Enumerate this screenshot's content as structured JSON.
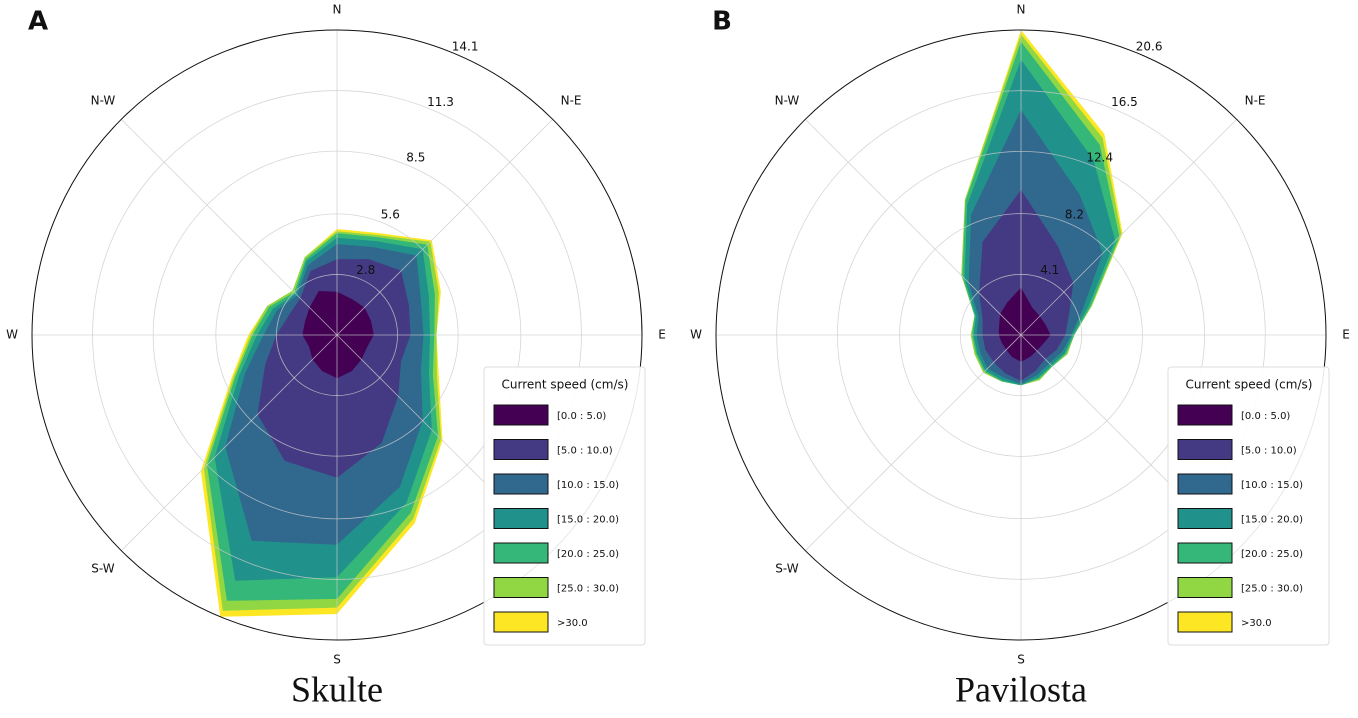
{
  "chart_data": [
    {
      "type": "rose",
      "panel": "A",
      "title": "Skulte",
      "legend_title": "Current speed (cm/s)",
      "categories": [
        "N",
        null,
        "N-E",
        null,
        "E",
        null,
        null,
        null,
        "S",
        null,
        "S-W",
        null,
        "W",
        null,
        "N-W",
        null
      ],
      "ylim": [
        0,
        14.1
      ],
      "yticks": [
        2.8,
        5.6,
        8.5,
        11.3,
        14.1
      ],
      "grid": true,
      "series": [
        {
          "name": "[0.0 : 5.0)",
          "color": "#440154",
          "values": [
            2.0,
            1.8,
            1.8,
            1.7,
            1.7,
            1.5,
            1.6,
            1.8,
            2.0,
            1.8,
            1.6,
            1.4,
            1.6,
            1.6,
            1.8,
            2.2
          ]
        },
        {
          "name": "[5.0 : 10.0)",
          "color": "#443983",
          "values": [
            1.5,
            2.0,
            2.4,
            1.9,
            1.7,
            1.7,
            2.4,
            3.6,
            4.6,
            4.5,
            3.6,
            2.2,
            1.2,
            0.8,
            0.6,
            1.0
          ]
        },
        {
          "name": "[10.0 : 15.0)",
          "color": "#31688e",
          "values": [
            0.7,
            0.6,
            1.0,
            0.6,
            0.6,
            1.0,
            1.6,
            2.2,
            3.1,
            4.0,
            2.1,
            1.0,
            0.6,
            0.6,
            0.2,
            0.3
          ]
        },
        {
          "name": "[15.0 : 20.0)",
          "color": "#21918c",
          "values": [
            0.3,
            0.3,
            0.4,
            0.4,
            0.3,
            0.4,
            0.6,
            0.8,
            1.5,
            2.0,
            0.7,
            0.3,
            0.3,
            0.2,
            0.1,
            0.2
          ]
        },
        {
          "name": "[20.0 : 25.0)",
          "color": "#35b779",
          "values": [
            0.2,
            0.2,
            0.3,
            0.3,
            0.2,
            0.2,
            0.4,
            0.5,
            1.0,
            1.0,
            0.5,
            0.2,
            0.2,
            0.2,
            0.1,
            0.1
          ]
        },
        {
          "name": "[25.0 : 30.0)",
          "color": "#90d743",
          "values": [
            0.1,
            0.1,
            0.2,
            0.2,
            0.1,
            0.2,
            0.2,
            0.3,
            0.4,
            0.5,
            0.2,
            0.1,
            0.1,
            0.1,
            0.1,
            0.1
          ]
        },
        {
          "name": ">30.0",
          "color": "#fde725",
          "values": [
            0.1,
            0.1,
            0.1,
            0.1,
            0.0,
            0.1,
            0.1,
            0.2,
            0.3,
            0.3,
            0.2,
            0.1,
            0.1,
            0.0,
            0.0,
            0.0
          ]
        }
      ]
    },
    {
      "type": "rose",
      "panel": "B",
      "title": "Pavilosta",
      "legend_title": "Current speed (cm/s)",
      "categories": [
        "N",
        null,
        "N-E",
        null,
        "E",
        null,
        null,
        null,
        "S",
        null,
        "S-W",
        null,
        "W",
        null,
        "N-W",
        null
      ],
      "ylim": [
        0,
        20.6
      ],
      "yticks": [
        4.1,
        8.2,
        12.4,
        16.5,
        20.6
      ],
      "grid": true,
      "series": [
        {
          "name": "[0.0 : 5.0)",
          "color": "#440154",
          "values": [
            3.2,
            2.0,
            1.8,
            1.8,
            2.0,
            1.6,
            1.5,
            1.6,
            1.8,
            1.6,
            1.4,
            1.4,
            1.5,
            1.6,
            2.0,
            2.4
          ]
        },
        {
          "name": "[5.0 : 10.0)",
          "color": "#443983",
          "values": [
            6.6,
            4.5,
            3.2,
            1.7,
            1.0,
            1.0,
            0.8,
            1.0,
            1.3,
            1.2,
            1.2,
            1.2,
            1.1,
            1.2,
            2.0,
            4.4
          ]
        },
        {
          "name": "[10.0 : 15.0)",
          "color": "#31688e",
          "values": [
            5.4,
            3.8,
            2.8,
            1.0,
            0.4,
            0.4,
            0.4,
            0.3,
            0.2,
            0.3,
            0.6,
            0.4,
            0.4,
            0.3,
            1.0,
            2.0
          ]
        },
        {
          "name": "[15.0 : 20.0)",
          "color": "#21918c",
          "values": [
            3.4,
            2.5,
            1.2,
            0.4,
            0.1,
            0.2,
            0.2,
            0.2,
            0.1,
            0.2,
            0.2,
            0.2,
            0.2,
            0.2,
            0.4,
            0.7
          ]
        },
        {
          "name": "[20.0 : 25.0)",
          "color": "#35b779",
          "values": [
            1.2,
            1.1,
            0.4,
            0.2,
            0.1,
            0.1,
            0.1,
            0.1,
            0.0,
            0.1,
            0.1,
            0.1,
            0.1,
            0.1,
            0.2,
            0.3
          ]
        },
        {
          "name": "[25.0 : 30.0)",
          "color": "#90d743",
          "values": [
            0.5,
            0.5,
            0.2,
            0.1,
            0.0,
            0.1,
            0.0,
            0.1,
            0.0,
            0.0,
            0.1,
            0.1,
            0.1,
            0.0,
            0.1,
            0.1
          ]
        },
        {
          "name": ">30.0",
          "color": "#fde725",
          "values": [
            0.3,
            0.3,
            0.1,
            0.0,
            0.0,
            0.0,
            0.0,
            0.0,
            0.0,
            0.0,
            0.0,
            0.0,
            0.0,
            0.0,
            0.0,
            0.0
          ]
        }
      ]
    }
  ]
}
